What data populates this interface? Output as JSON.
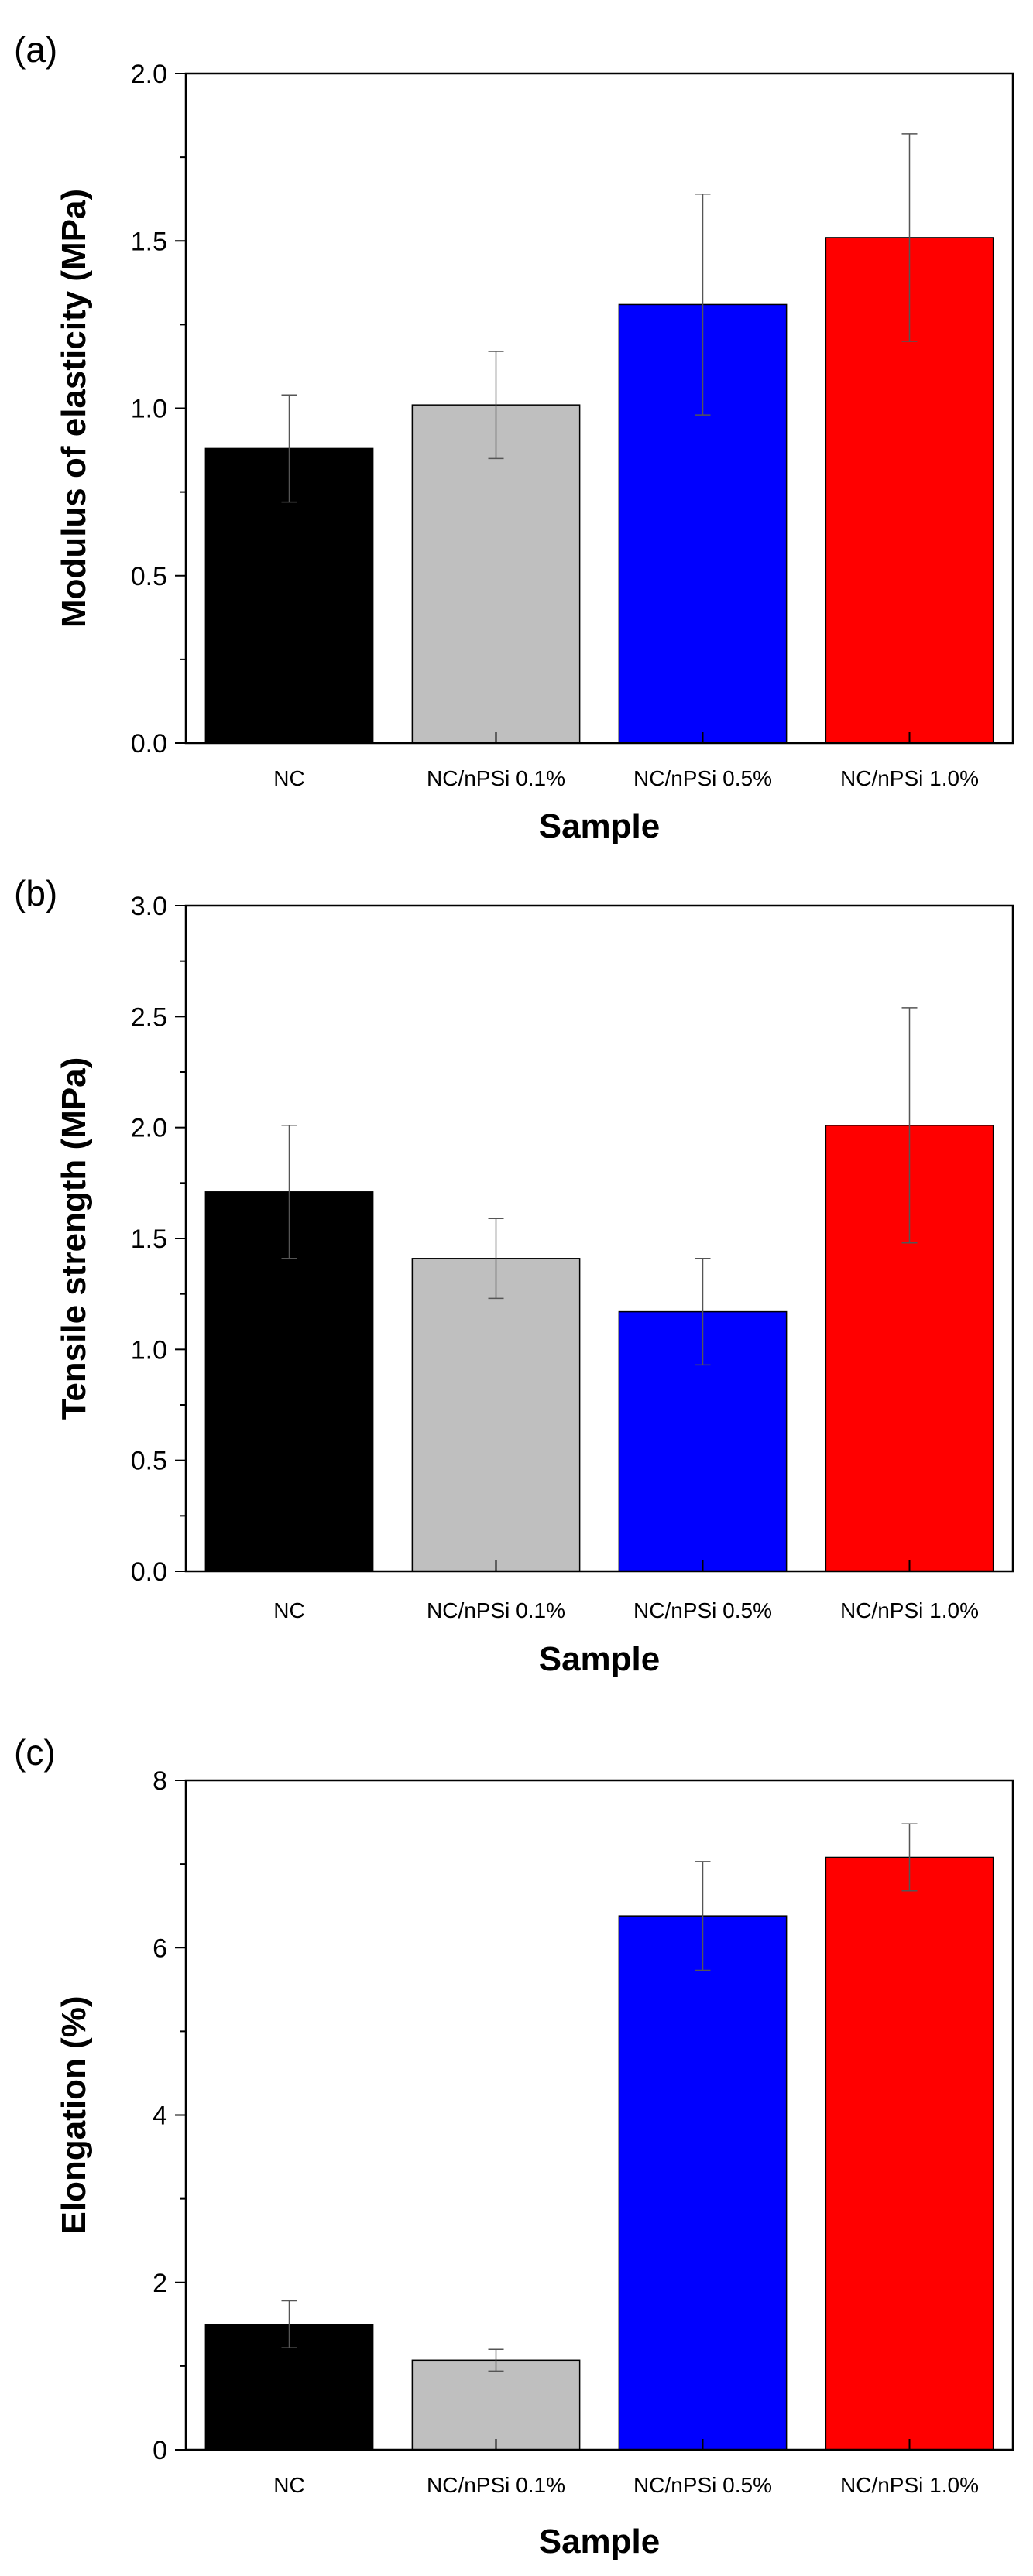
{
  "chart_data": [
    {
      "type": "bar",
      "panel_label": "(a)",
      "categories": [
        "NC",
        "NC/nPSi 0.1%",
        "NC/nPSi 0.5%",
        "NC/nPSi 1.0%"
      ],
      "values": [
        0.88,
        1.01,
        1.31,
        1.51
      ],
      "errors": [
        0.16,
        0.16,
        0.33,
        0.31
      ],
      "colors": [
        "#000000",
        "#bfbfbf",
        "#0000ff",
        "#ff0000"
      ],
      "xlabel": "Sample",
      "ylabel": "Modulus of elasticity (MPa)",
      "ylim": [
        0,
        2.0
      ],
      "yticks": [
        "0.0",
        "0.5",
        "1.0",
        "1.5",
        "2.0"
      ]
    },
    {
      "type": "bar",
      "panel_label": "(b)",
      "categories": [
        "NC",
        "NC/nPSi 0.1%",
        "NC/nPSi 0.5%",
        "NC/nPSi 1.0%"
      ],
      "values": [
        1.71,
        1.41,
        1.17,
        2.01
      ],
      "errors": [
        0.3,
        0.18,
        0.24,
        0.53
      ],
      "colors": [
        "#000000",
        "#bfbfbf",
        "#0000ff",
        "#ff0000"
      ],
      "xlabel": "Sample",
      "ylabel": "Tensile strength (MPa)",
      "ylim": [
        0,
        3.0
      ],
      "yticks": [
        "0.0",
        "0.5",
        "1.0",
        "1.5",
        "2.0",
        "2.5",
        "3.0"
      ]
    },
    {
      "type": "bar",
      "panel_label": "(c)",
      "categories": [
        "NC",
        "NC/nPSi 0.1%",
        "NC/nPSi 0.5%",
        "NC/nPSi 1.0%"
      ],
      "values": [
        1.5,
        1.07,
        6.38,
        7.08
      ],
      "errors": [
        0.28,
        0.13,
        0.65,
        0.4
      ],
      "colors": [
        "#000000",
        "#bfbfbf",
        "#0000ff",
        "#ff0000"
      ],
      "xlabel": "Sample",
      "ylabel": "Elongation (%)",
      "ylim": [
        0,
        8
      ],
      "yticks": [
        "0",
        "2",
        "4",
        "6",
        "8"
      ]
    }
  ]
}
